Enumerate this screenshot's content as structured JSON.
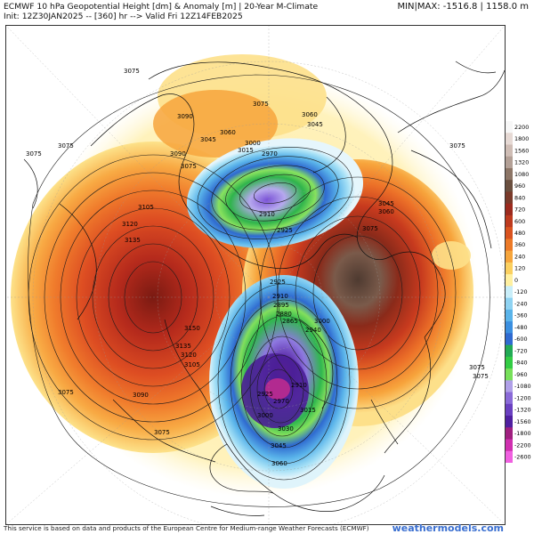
{
  "header": {
    "title_line1": "ECMWF 10 hPa Geopotential Height [dm] & Anomaly [m] | 20-Year M-Climate",
    "title_line2": "Init: 12Z30JAN2025 -- [360] hr --> Valid Fri 12Z14FEB2025",
    "minmax": "MIN|MAX: -1516.8 | 1158.0 m"
  },
  "colorbar": {
    "labels": [
      "2200",
      "1800",
      "1560",
      "1320",
      "1080",
      "960",
      "840",
      "720",
      "600",
      "480",
      "360",
      "240",
      "120",
      "0",
      "-120",
      "-240",
      "-360",
      "-480",
      "-600",
      "-720",
      "-840",
      "-960",
      "-1080",
      "-1200",
      "-1320",
      "-1560",
      "-1800",
      "-2200",
      "-2600"
    ],
    "colors": [
      "#f7f7f7",
      "#e6d9d4",
      "#cfbdb5",
      "#b3a096",
      "#8c7566",
      "#6a4f3f",
      "#7a3a2a",
      "#9c2a1e",
      "#bd3a1e",
      "#d9531f",
      "#ec7a28",
      "#f6a53c",
      "#fbd060",
      "#fff0a0",
      "#c9eef9",
      "#8fd3f2",
      "#5ab4ea",
      "#3b8fe0",
      "#2f6ad0",
      "#22aa55",
      "#33cc44",
      "#77e05a",
      "#b0a0e8",
      "#8a6ad8",
      "#6a40c0",
      "#5020a0",
      "#a02080",
      "#d030b0",
      "#f060e0"
    ]
  },
  "contour_labels": {
    "h3075": "3075",
    "h3090": "3090",
    "h3105": "3105",
    "h3120": "3120",
    "h3135": "3135",
    "h3150": "3150",
    "h3060": "3060",
    "h3045": "3045",
    "h3030": "3030",
    "h3015": "3015",
    "h3000": "3000",
    "h2985": "2985",
    "h2970": "2970",
    "h2955": "2955",
    "h2940": "2940",
    "h2925": "2925",
    "h2910": "2910",
    "h2895": "2895",
    "h2880": "2880",
    "h2865": "2865",
    "h2850": "2850"
  },
  "footer": {
    "text": "This service is based on data and products of the European Centre for Medium-range Weather Forecasts (ECMWF)",
    "brand": "weathermodels.com"
  }
}
